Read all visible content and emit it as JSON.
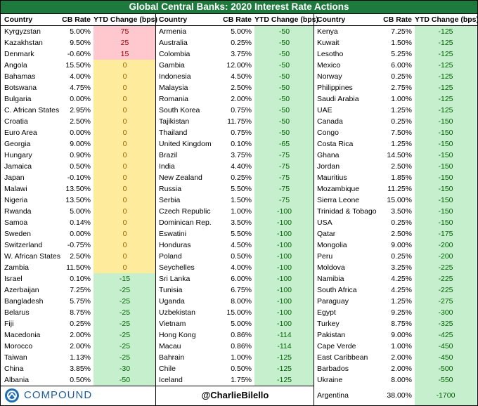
{
  "title": "Global Central Banks: 2020 Interest Rate Actions",
  "groups": [
    {
      "headers": [
        "Country",
        "CB Rate",
        "YTD Change (bps)"
      ],
      "rows": [
        [
          "Kyrgyzstan",
          "5.00%",
          75
        ],
        [
          "Kazakhstan",
          "9.50%",
          25
        ],
        [
          "Denmark",
          "-0.60%",
          15
        ],
        [
          "Angola",
          "15.50%",
          0
        ],
        [
          "Bahamas",
          "4.00%",
          0
        ],
        [
          "Botswana",
          "4.75%",
          0
        ],
        [
          "Bulgaria",
          "0.00%",
          0
        ],
        [
          "C. African States",
          "2.95%",
          0
        ],
        [
          "Croatia",
          "2.50%",
          0
        ],
        [
          "Euro Area",
          "0.00%",
          0
        ],
        [
          "Georgia",
          "9.00%",
          0
        ],
        [
          "Hungary",
          "0.90%",
          0
        ],
        [
          "Jamaica",
          "0.50%",
          0
        ],
        [
          "Japan",
          "-0.10%",
          0
        ],
        [
          "Malawi",
          "13.50%",
          0
        ],
        [
          "Nigeria",
          "13.50%",
          0
        ],
        [
          "Rwanda",
          "5.00%",
          0
        ],
        [
          "Samoa",
          "0.14%",
          0
        ],
        [
          "Sweden",
          "0.00%",
          0
        ],
        [
          "Switzerland",
          "-0.75%",
          0
        ],
        [
          "W. African States",
          "2.50%",
          0
        ],
        [
          "Zambia",
          "11.50%",
          0
        ],
        [
          "Israel",
          "0.10%",
          -15
        ],
        [
          "Azerbaijan",
          "7.25%",
          -25
        ],
        [
          "Bangladesh",
          "5.75%",
          -25
        ],
        [
          "Belarus",
          "8.75%",
          -25
        ],
        [
          "Fiji",
          "0.25%",
          -25
        ],
        [
          "Macedonia",
          "2.00%",
          -25
        ],
        [
          "Morocco",
          "2.00%",
          -25
        ],
        [
          "Taiwan",
          "1.13%",
          -25
        ],
        [
          "China",
          "3.85%",
          -30
        ],
        [
          "Albania",
          "0.50%",
          -50
        ]
      ]
    },
    {
      "headers": [
        "Country",
        "CB Rate",
        "YTD Change (bps)"
      ],
      "rows": [
        [
          "Armenia",
          "5.00%",
          -50
        ],
        [
          "Australia",
          "0.25%",
          -50
        ],
        [
          "Colombia",
          "3.75%",
          -50
        ],
        [
          "Gambia",
          "12.00%",
          -50
        ],
        [
          "Indonesia",
          "4.50%",
          -50
        ],
        [
          "Malaysia",
          "2.50%",
          -50
        ],
        [
          "Romania",
          "2.00%",
          -50
        ],
        [
          "South Korea",
          "0.75%",
          -50
        ],
        [
          "Tajikistan",
          "11.75%",
          -50
        ],
        [
          "Thailand",
          "0.75%",
          -50
        ],
        [
          "United Kingdom",
          "0.10%",
          -65
        ],
        [
          "Brazil",
          "3.75%",
          -75
        ],
        [
          "India",
          "4.40%",
          -75
        ],
        [
          "New Zealand",
          "0.25%",
          -75
        ],
        [
          "Russia",
          "5.50%",
          -75
        ],
        [
          "Serbia",
          "1.50%",
          -75
        ],
        [
          "Czech Republic",
          "1.00%",
          -100
        ],
        [
          "Dominican Rep.",
          "3.50%",
          -100
        ],
        [
          "Eswatini",
          "5.50%",
          -100
        ],
        [
          "Honduras",
          "4.50%",
          -100
        ],
        [
          "Poland",
          "0.50%",
          -100
        ],
        [
          "Seychelles",
          "4.00%",
          -100
        ],
        [
          "Sri Lanka",
          "6.00%",
          -100
        ],
        [
          "Tunisia",
          "6.75%",
          -100
        ],
        [
          "Uganda",
          "8.00%",
          -100
        ],
        [
          "Uzbekistan",
          "15.00%",
          -100
        ],
        [
          "Vietnam",
          "5.00%",
          -100
        ],
        [
          "Hong Kong",
          "0.86%",
          -114
        ],
        [
          "Macau",
          "0.86%",
          -114
        ],
        [
          "Bahrain",
          "1.00%",
          -125
        ],
        [
          "Chile",
          "0.50%",
          -125
        ],
        [
          "Iceland",
          "1.75%",
          -125
        ]
      ]
    },
    {
      "headers": [
        "Country",
        "CB Rate",
        "YTD Change (bps)"
      ],
      "rows": [
        [
          "Kenya",
          "7.25%",
          -125
        ],
        [
          "Kuwait",
          "1.50%",
          -125
        ],
        [
          "Lesotho",
          "5.25%",
          -125
        ],
        [
          "Mexico",
          "6.00%",
          -125
        ],
        [
          "Norway",
          "0.25%",
          -125
        ],
        [
          "Philippines",
          "2.75%",
          -125
        ],
        [
          "Saudi Arabia",
          "1.00%",
          -125
        ],
        [
          "UAE",
          "1.25%",
          -125
        ],
        [
          "Canada",
          "0.25%",
          -150
        ],
        [
          "Congo",
          "7.50%",
          -150
        ],
        [
          "Costa Rica",
          "1.25%",
          -150
        ],
        [
          "Ghana",
          "14.50%",
          -150
        ],
        [
          "Jordan",
          "2.50%",
          -150
        ],
        [
          "Mauritius",
          "1.85%",
          -150
        ],
        [
          "Mozambique",
          "11.25%",
          -150
        ],
        [
          "Sierra Leone",
          "15.00%",
          -150
        ],
        [
          "Trinidad & Tobago",
          "3.50%",
          -150
        ],
        [
          "USA",
          "0.25%",
          -150
        ],
        [
          "Qatar",
          "2.50%",
          -175
        ],
        [
          "Mongolia",
          "9.00%",
          -200
        ],
        [
          "Peru",
          "0.25%",
          -200
        ],
        [
          "Moldova",
          "3.25%",
          -225
        ],
        [
          "Namibia",
          "4.25%",
          -225
        ],
        [
          "South Africa",
          "4.25%",
          -225
        ],
        [
          "Paraguay",
          "1.25%",
          -275
        ],
        [
          "Egypt",
          "9.25%",
          -300
        ],
        [
          "Turkey",
          "8.75%",
          -325
        ],
        [
          "Pakistan",
          "9.00%",
          -425
        ],
        [
          "Cape Verde",
          "1.00%",
          -450
        ],
        [
          "East Caribbean",
          "2.00%",
          -450
        ],
        [
          "Barbados",
          "2.00%",
          -500
        ],
        [
          "Ukraine",
          "8.00%",
          -550
        ],
        [
          "Argentina",
          "38.00%",
          -1700
        ]
      ]
    }
  ],
  "footer": {
    "logo": "COMPOUND",
    "handle": "@CharlieBilello"
  }
}
